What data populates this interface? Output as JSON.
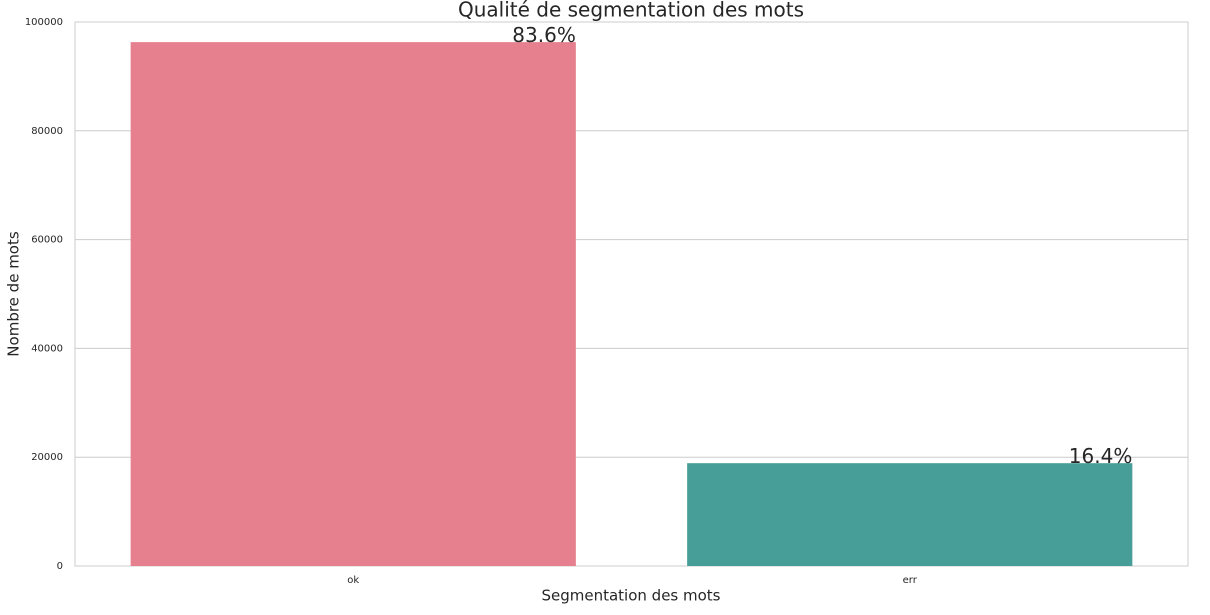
{
  "chart_data": {
    "type": "bar",
    "title": "Qualité de segmentation des mots",
    "x_label": "Segmentation des mots",
    "y_label": "Nombre de mots",
    "categories": [
      "ok",
      "err"
    ],
    "values": [
      96300,
      18900
    ],
    "colors": [
      "#e6808f",
      "#479e98"
    ],
    "annotations": [
      "83.6%",
      "16.4%"
    ],
    "ylim": [
      0,
      100000
    ],
    "yticks": [
      0,
      20000,
      40000,
      60000,
      80000,
      100000
    ],
    "grid": true
  }
}
